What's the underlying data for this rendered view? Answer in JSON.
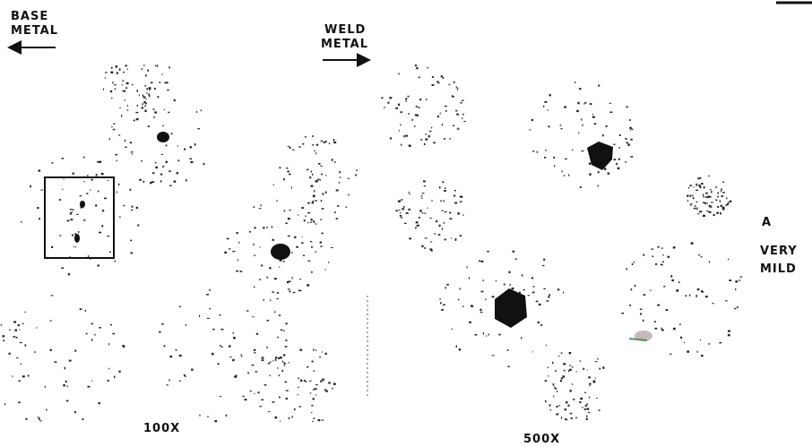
{
  "figure": {
    "base_label": [
      "BASE",
      "METAL"
    ],
    "weld_label": [
      "WELD",
      "METAL"
    ],
    "left_magnification": "100X",
    "right_magnification": "500X",
    "side_note": [
      "A",
      "VERY",
      "MILD"
    ]
  }
}
